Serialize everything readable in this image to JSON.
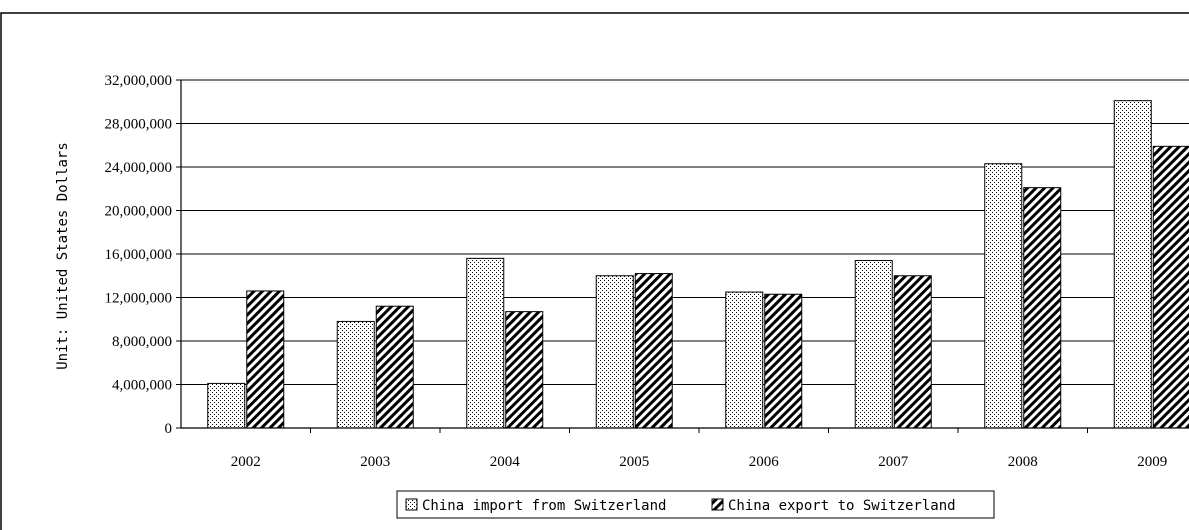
{
  "chart_data": {
    "type": "bar",
    "title": "",
    "xlabel": "",
    "ylabel": "Unit: United States Dollars",
    "categories": [
      "2002",
      "2003",
      "2004",
      "2005",
      "2006",
      "2007",
      "2008",
      "2009"
    ],
    "series": [
      {
        "name": "China import from Switzerland",
        "pattern": "dots",
        "values": [
          4100000,
          9800000,
          15600000,
          14000000,
          12500000,
          15400000,
          24300000,
          30100000
        ]
      },
      {
        "name": "China export to Switzerland",
        "pattern": "diagonal-stripes",
        "values": [
          12600000,
          11200000,
          10700000,
          14200000,
          12300000,
          14000000,
          22100000,
          25900000
        ]
      }
    ],
    "ylim": [
      0,
      32000000
    ],
    "yticks": [
      0,
      4000000,
      8000000,
      12000000,
      16000000,
      20000000,
      24000000,
      28000000,
      32000000
    ],
    "ytick_labels": [
      "0",
      "4,000,000",
      "8,000,000",
      "12,000,000",
      "16,000,000",
      "20,000,000",
      "24,000,000",
      "28,000,000",
      "32,000,000"
    ],
    "grid": true,
    "legend_position": "bottom"
  },
  "colors": {
    "bar_fill": "#ffffff",
    "pattern_ink": "#000000",
    "gridline": "#000000",
    "border": "#000000"
  }
}
